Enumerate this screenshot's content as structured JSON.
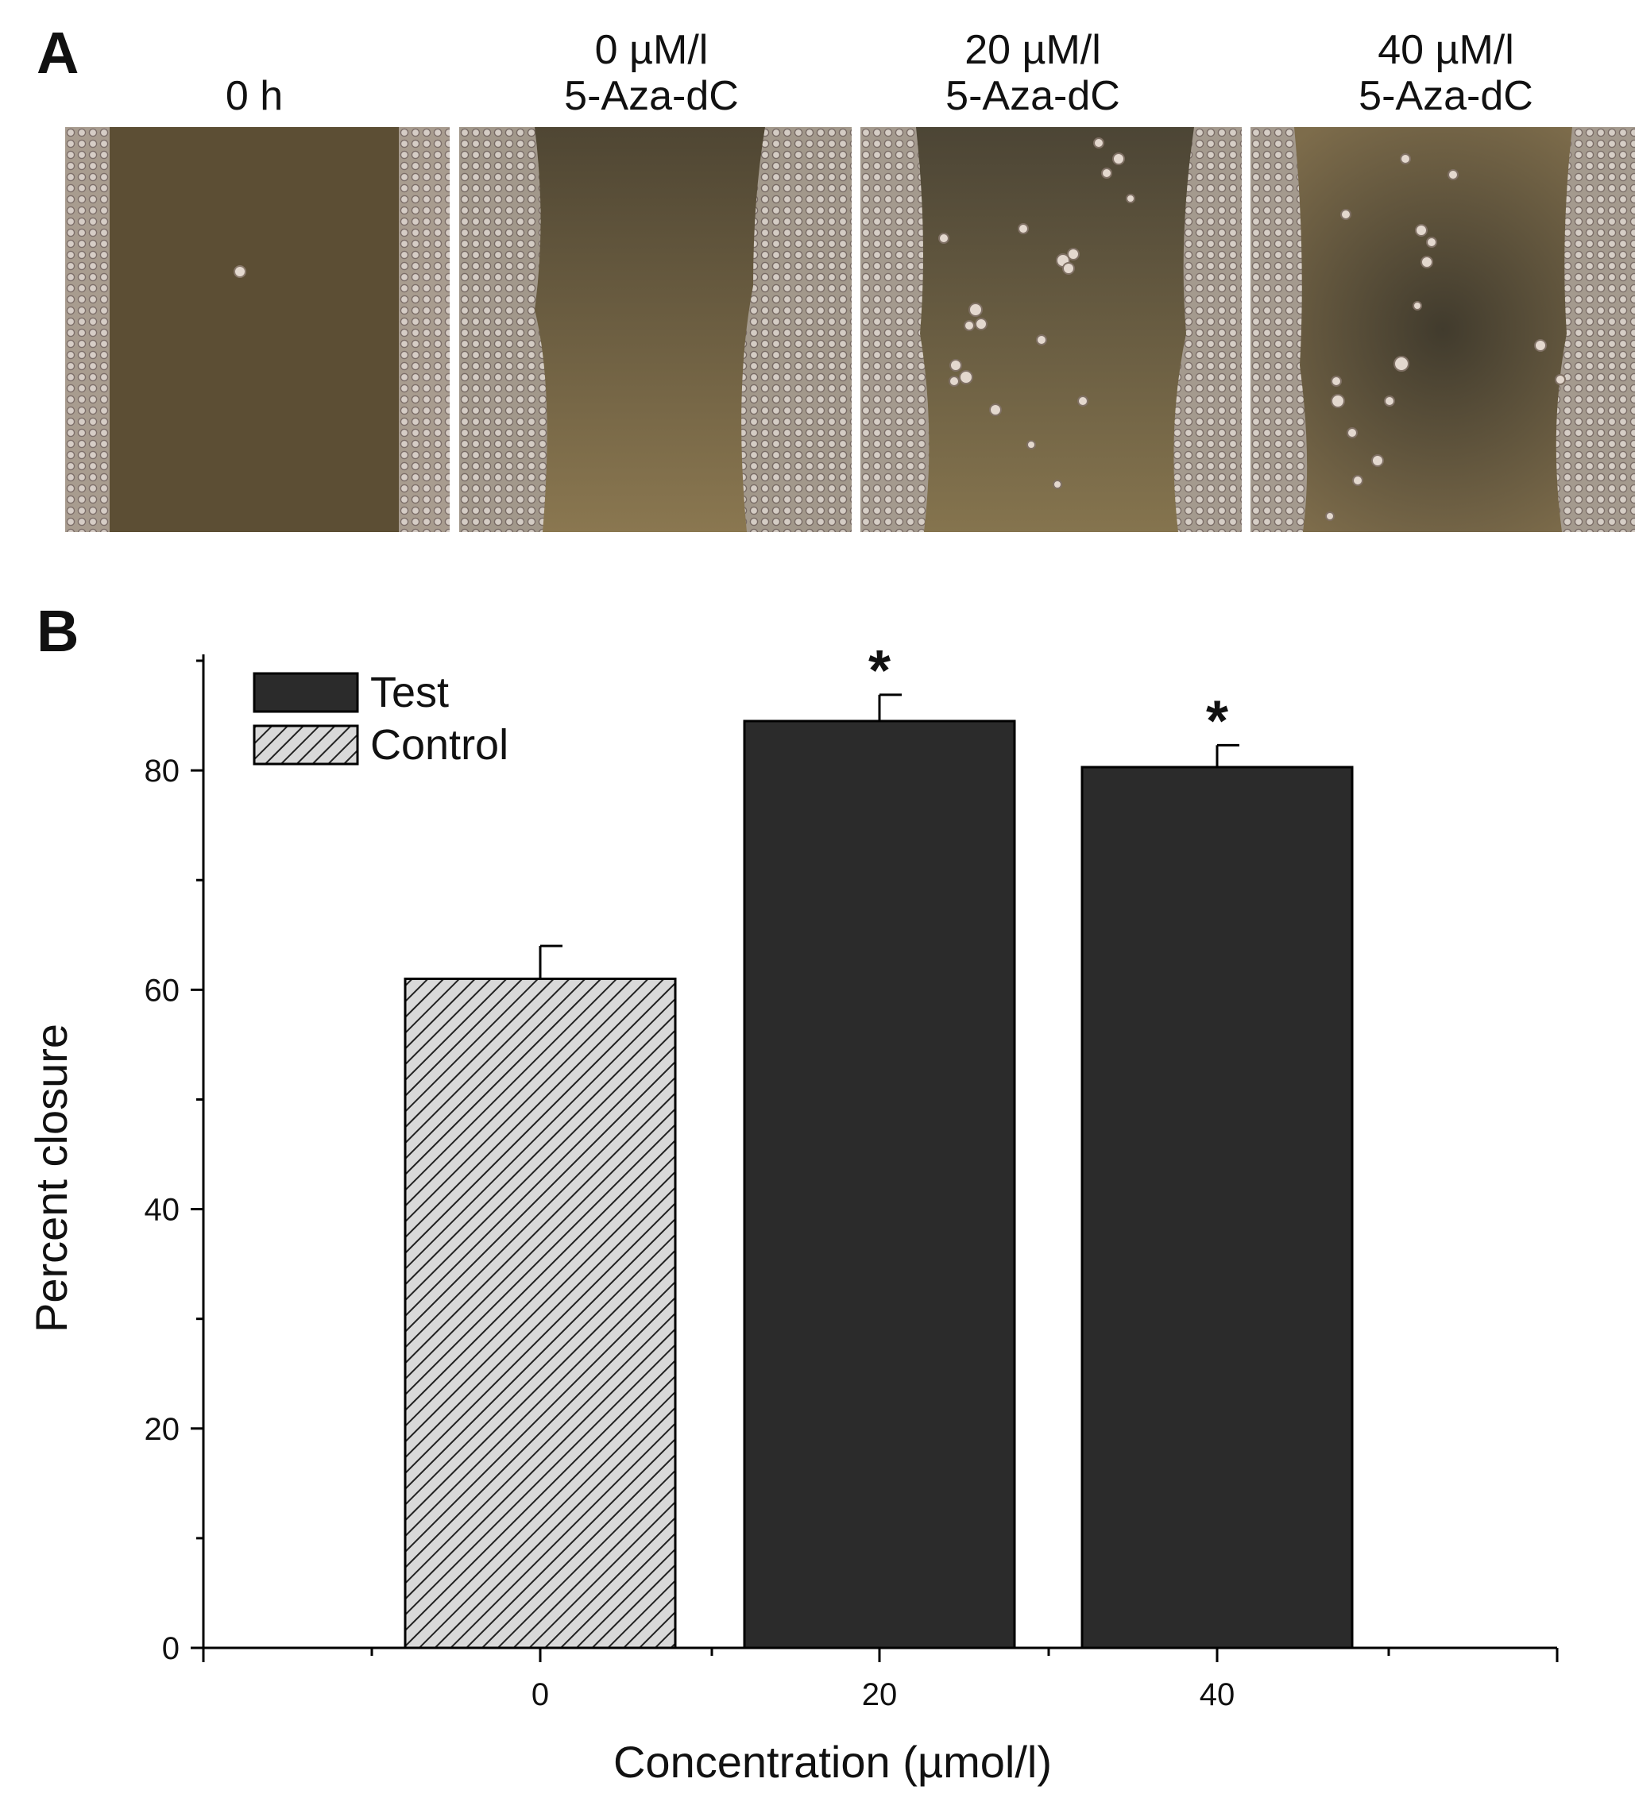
{
  "panel_a": {
    "letter": "A",
    "labels": [
      {
        "line1": "0 h",
        "line2": ""
      },
      {
        "line1": "0 µM/l",
        "line2": "5-Aza-dC"
      },
      {
        "line1": "20 µM/l",
        "line2": "5-Aza-dC"
      },
      {
        "line1": "40 µM/l",
        "line2": "5-Aza-dC"
      }
    ]
  },
  "panel_b": {
    "letter": "B"
  },
  "colors": {
    "test_fill": "#2b2b2b",
    "control_fill": "#d9d9d9",
    "control_hatch": "#222222",
    "axis": "#000000"
  },
  "chart_data": {
    "type": "bar",
    "xlabel": "Concentration (µmol/l)",
    "ylabel": "Percent closure",
    "categories": [
      "0",
      "20",
      "40"
    ],
    "x_ticks": [
      "0",
      "20",
      "40"
    ],
    "y_ticks": [
      0,
      20,
      40,
      60,
      80
    ],
    "ylim": [
      0,
      90
    ],
    "series": [
      {
        "name": "Test",
        "values": [
          null,
          84.5,
          80.3
        ],
        "errors": [
          null,
          2.4,
          2.0
        ]
      },
      {
        "name": "Control",
        "values": [
          61.0,
          null,
          null
        ],
        "errors": [
          3.0,
          null,
          null
        ]
      }
    ],
    "annotations": [
      {
        "category": "20",
        "text": "*"
      },
      {
        "category": "40",
        "text": "*"
      }
    ],
    "legend": {
      "placement": "top-left",
      "entries": [
        "Test",
        "Control"
      ]
    },
    "grid": false
  }
}
